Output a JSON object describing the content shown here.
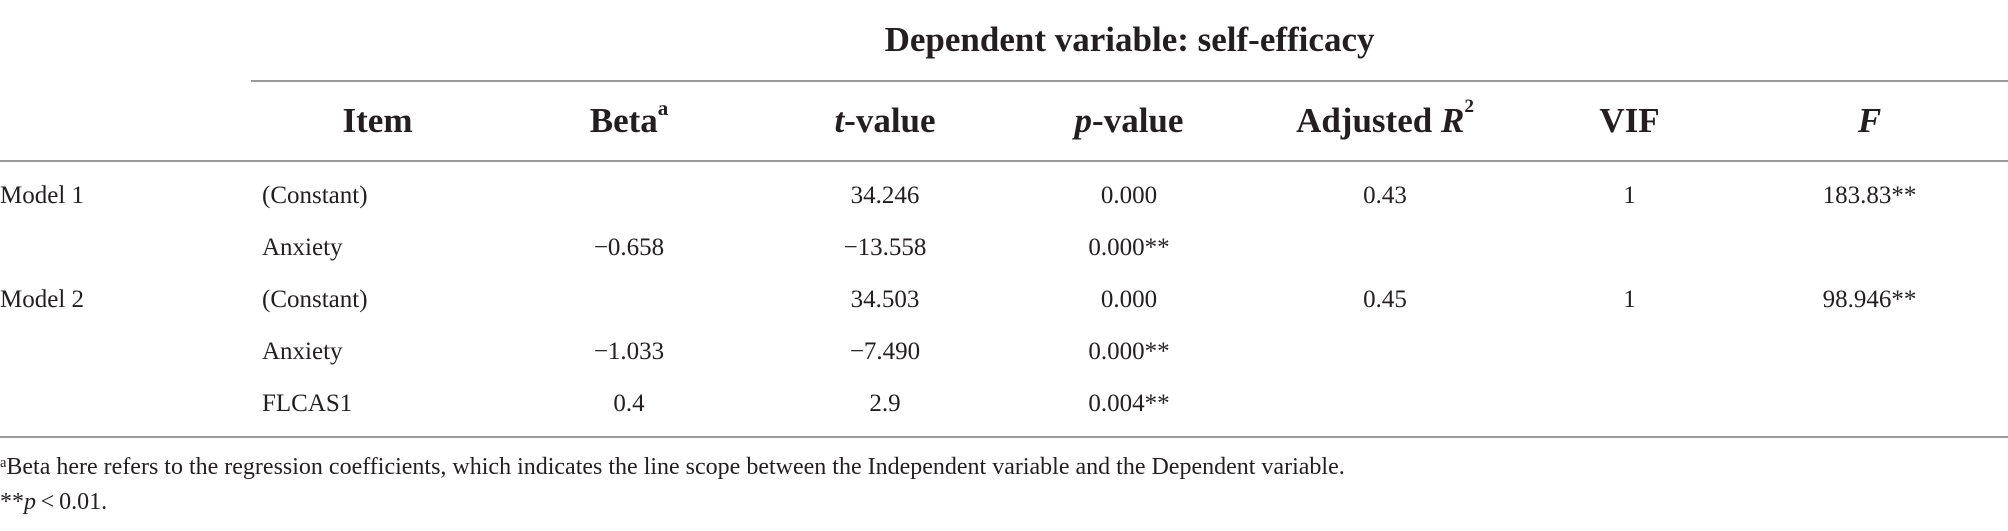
{
  "table": {
    "dependent_label": "Dependent variable: self-efficacy",
    "headers": {
      "item": "Item",
      "beta": "Beta",
      "beta_mark": "a",
      "t_italic": "t",
      "t_rest": "-value",
      "p_italic": "p",
      "p_rest": "-value",
      "adjr_text": "Adjusted ",
      "adjr_italic": "R",
      "adjr_sup": "2",
      "vif": "VIF",
      "f": "F"
    },
    "rows": [
      {
        "model": "Model 1",
        "item": "(Constant)",
        "beta": "",
        "t": "34.246",
        "p": "0.000",
        "adj_r2": "0.43",
        "vif": "1",
        "f": "183.83**"
      },
      {
        "model": "",
        "item": "Anxiety",
        "beta": "−0.658",
        "t": "−13.558",
        "p": "0.000**",
        "adj_r2": "",
        "vif": "",
        "f": ""
      },
      {
        "model": "Model 2",
        "item": "(Constant)",
        "beta": "",
        "t": "34.503",
        "p": "0.000",
        "adj_r2": "0.45",
        "vif": "1",
        "f": "98.946**"
      },
      {
        "model": "",
        "item": "Anxiety",
        "beta": "−1.033",
        "t": "−7.490",
        "p": "0.000**",
        "adj_r2": "",
        "vif": "",
        "f": ""
      },
      {
        "model": "",
        "item": "FLCAS1",
        "beta": "0.4",
        "t": "2.9",
        "p": "0.004**",
        "adj_r2": "",
        "vif": "",
        "f": ""
      }
    ]
  },
  "footnotes": {
    "note_a_mark": "a",
    "note_a_text": "Beta here refers to the regression coefficients, which indicates the line scope between the Independent variable and the Dependent variable.",
    "note_p_prefix": "**",
    "note_p_italic": "p",
    "note_p_rest": " < 0.01."
  }
}
